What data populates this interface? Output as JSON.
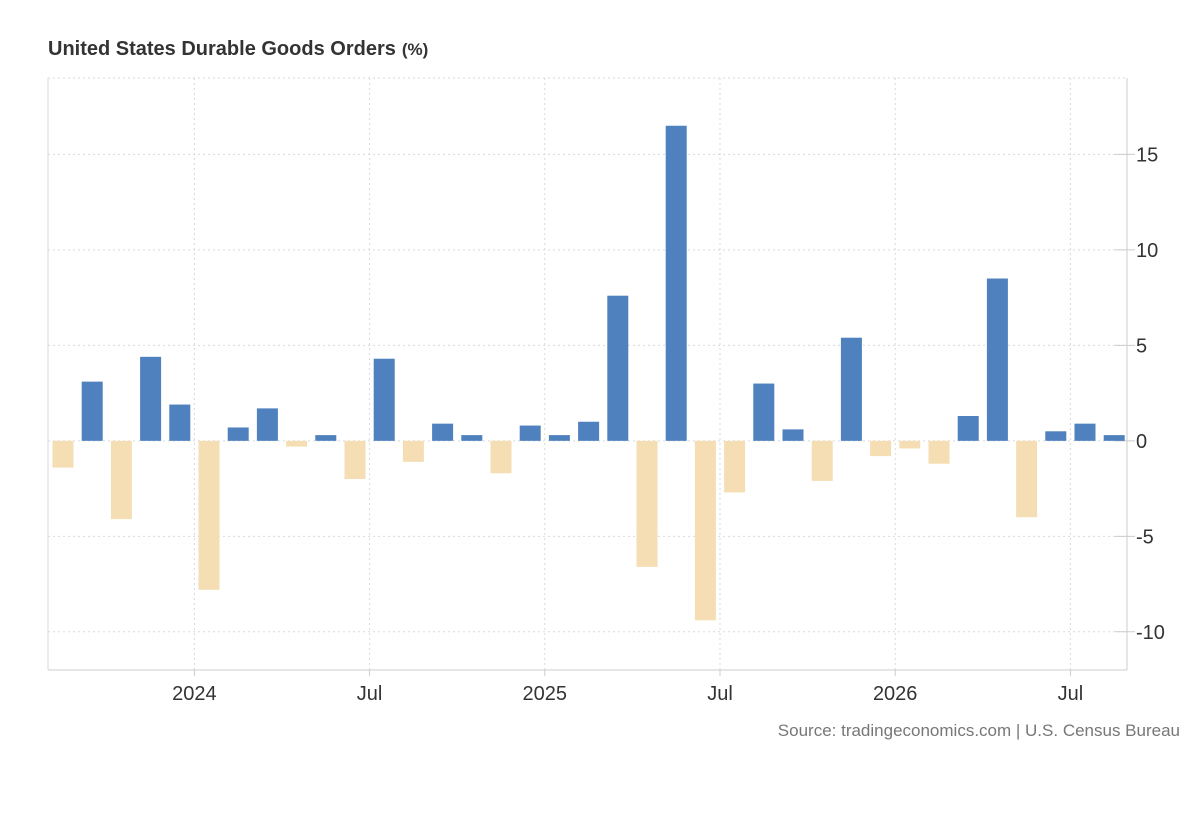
{
  "title": "United States Durable Goods Orders",
  "unit_label": "(%)",
  "source": "Source: tradingeconomics.com | U.S. Census Bureau",
  "colors": {
    "positive": "#4e81bd",
    "negative": "#f5deb3",
    "grid": "#d9d9d9",
    "axis": "#cccccc",
    "text": "#333333",
    "source_text": "#777777"
  },
  "chart_data": {
    "type": "bar",
    "title": "United States Durable Goods Orders (%)",
    "xlabel": "",
    "ylabel": "",
    "ylim": [
      -12,
      19
    ],
    "yticks": [
      -10,
      -5,
      0,
      5,
      10,
      15
    ],
    "y_axis_position": "right",
    "grid": true,
    "x_tick_labels": [
      {
        "label": "2024",
        "after_index": 4.5
      },
      {
        "label": "Jul",
        "after_index": 10.5
      },
      {
        "label": "2025",
        "after_index": 16.5
      },
      {
        "label": "Jul",
        "after_index": 22.5
      },
      {
        "label": "2026",
        "after_index": 28.5
      },
      {
        "label": "Jul",
        "after_index": 34.5
      }
    ],
    "categories": [
      "Aug 2023",
      "Sep 2023",
      "Oct 2023",
      "Nov 2023",
      "Dec 2023",
      "Jan 2024",
      "Feb 2024",
      "Mar 2024",
      "Apr 2024",
      "May 2024",
      "Jun 2024",
      "Jul 2024",
      "Aug 2024",
      "Sep 2024",
      "Oct 2024",
      "Nov 2024",
      "Dec 2024",
      "Jan 2025",
      "Feb 2025",
      "Mar 2025",
      "Apr 2025",
      "May 2025",
      "Jun 2025",
      "Jul 2025",
      "Aug 2025",
      "Sep 2025",
      "Oct 2025",
      "Nov 2025",
      "Dec 2025",
      "Jan 2026",
      "Feb 2026",
      "Mar 2026",
      "Apr 2026",
      "May 2026",
      "Jun 2026",
      "Jul 2026",
      "Aug 2026"
    ],
    "values": [
      -1.4,
      3.1,
      -4.1,
      4.4,
      1.9,
      -7.8,
      0.7,
      1.7,
      -0.3,
      0.3,
      -2.0,
      4.3,
      -1.1,
      0.9,
      0.3,
      -1.7,
      0.8,
      0.3,
      1.0,
      7.6,
      -6.6,
      16.5,
      -9.4,
      -2.7,
      3.0,
      0.6,
      -2.1,
      5.4,
      -0.8,
      -0.4,
      -1.2,
      1.3,
      8.5,
      -4.0,
      0.5,
      0.9,
      0.3
    ]
  }
}
